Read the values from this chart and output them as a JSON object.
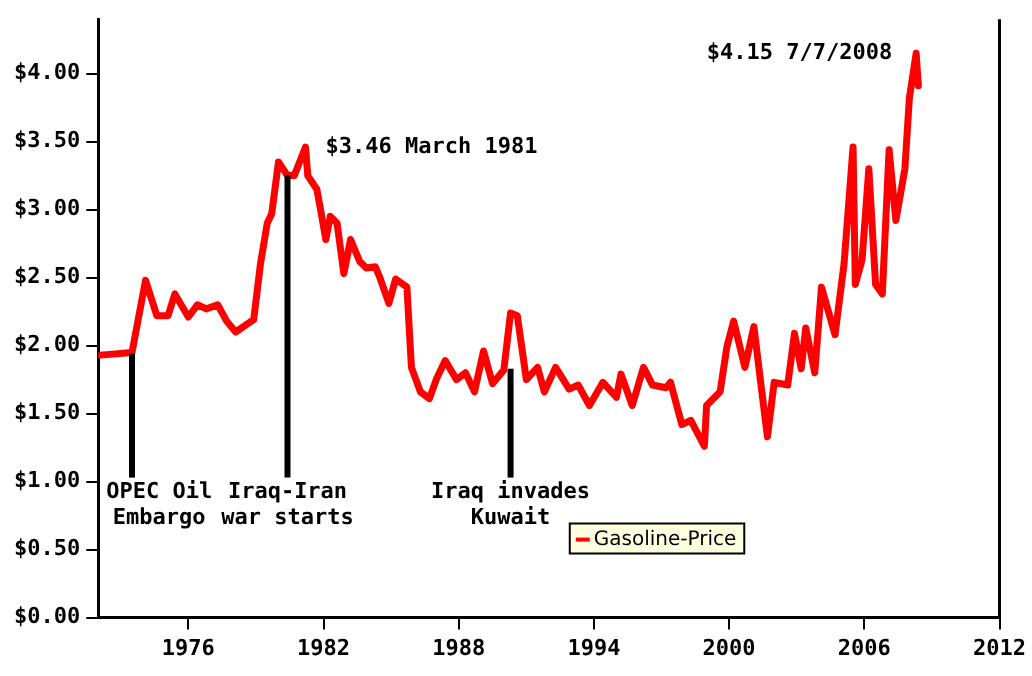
{
  "chart_data": {
    "type": "line",
    "x": [
      1972.1,
      1973.5,
      1974.1,
      1974.6,
      1975.1,
      1975.4,
      1976.0,
      1976.4,
      1976.8,
      1977.3,
      1977.7,
      1978.1,
      1978.8,
      1978.9,
      1979.2,
      1979.5,
      1979.7,
      1980.0,
      1980.4,
      1980.7,
      1981.2,
      1981.3,
      1981.7,
      1981.9,
      1982.1,
      1982.3,
      1982.6,
      1982.9,
      1983.2,
      1983.6,
      1983.9,
      1984.3,
      1984.5,
      1984.9,
      1985.2,
      1985.7,
      1985.9,
      1986.3,
      1986.7,
      1987.0,
      1987.4,
      1987.9,
      1988.3,
      1988.7,
      1989.1,
      1989.5,
      1990.0,
      1990.3,
      1990.6,
      1991.0,
      1991.5,
      1991.8,
      1992.3,
      1992.9,
      1993.3,
      1993.8,
      1994.4,
      1995.0,
      1995.2,
      1995.7,
      1996.2,
      1996.6,
      1997.2,
      1997.4,
      1997.9,
      1998.3,
      1998.9,
      1999.0,
      1999.6,
      1999.9,
      2000.2,
      2000.7,
      2001.1,
      2001.4,
      2001.7,
      2002.0,
      2002.6,
      2002.9,
      2003.2,
      2003.4,
      2003.8,
      2004.1,
      2004.7,
      2005.1,
      2005.5,
      2005.6,
      2005.9,
      2006.2,
      2006.5,
      2006.8,
      2007.1,
      2007.4,
      2007.8,
      2008.0,
      2008.3,
      2008.4
    ],
    "series": [
      {
        "name": "Gasoline-Price",
        "color": "#ff0000",
        "values": [
          1.93,
          1.95,
          2.48,
          2.22,
          2.22,
          2.38,
          2.21,
          2.3,
          2.27,
          2.3,
          2.18,
          2.1,
          2.18,
          2.19,
          2.6,
          2.9,
          2.97,
          3.35,
          3.25,
          3.25,
          3.46,
          3.25,
          3.15,
          2.97,
          2.78,
          2.95,
          2.9,
          2.53,
          2.78,
          2.62,
          2.57,
          2.58,
          2.5,
          2.31,
          2.49,
          2.43,
          1.84,
          1.66,
          1.61,
          1.75,
          1.89,
          1.75,
          1.8,
          1.66,
          1.96,
          1.72,
          1.82,
          2.24,
          2.22,
          1.75,
          1.84,
          1.66,
          1.84,
          1.68,
          1.71,
          1.56,
          1.73,
          1.62,
          1.79,
          1.56,
          1.84,
          1.71,
          1.69,
          1.73,
          1.42,
          1.45,
          1.26,
          1.56,
          1.66,
          1.99,
          2.18,
          1.84,
          2.14,
          1.73,
          1.33,
          1.73,
          1.71,
          2.09,
          1.83,
          2.13,
          1.8,
          2.43,
          2.08,
          2.6,
          3.46,
          2.45,
          2.63,
          3.3,
          2.45,
          2.38,
          3.44,
          2.92,
          3.3,
          3.82,
          4.15,
          3.91
        ]
      }
    ],
    "xlim": [
      1972,
      2012
    ],
    "xticks": [
      1976,
      1982,
      1988,
      1994,
      2000,
      2006,
      2012
    ],
    "ylim": [
      0,
      4.4
    ],
    "yticks": [
      {
        "value": 0,
        "label": "$0.00"
      },
      {
        "value": 0.5,
        "label": "$0.50"
      },
      {
        "value": 1,
        "label": "$1.00"
      },
      {
        "value": 1.5,
        "label": "$1.50"
      },
      {
        "value": 2,
        "label": "$2.00"
      },
      {
        "value": 2.5,
        "label": "$2.50"
      },
      {
        "value": 3,
        "label": "$3.00"
      },
      {
        "value": 3.5,
        "label": "$3.50"
      },
      {
        "value": 4,
        "label": "$4.00"
      }
    ],
    "grid": false,
    "legend": "bottom",
    "annotations": [
      {
        "text": "$3.46 March 1981",
        "x": 1981.2,
        "y": 3.46
      },
      {
        "text": "$4.15 7/7/2008",
        "x": 2008.3,
        "y": 4.15
      },
      {
        "text": "OPEC Oil\nEmbargo",
        "x": 1973.5,
        "y": 1.94
      },
      {
        "text": "Iraq-Iran\nwar starts",
        "x": 1980.4,
        "y": 3.25
      },
      {
        "text": "Iraq invades\nKuwait",
        "x": 1990.3,
        "y": 1.83
      }
    ]
  }
}
